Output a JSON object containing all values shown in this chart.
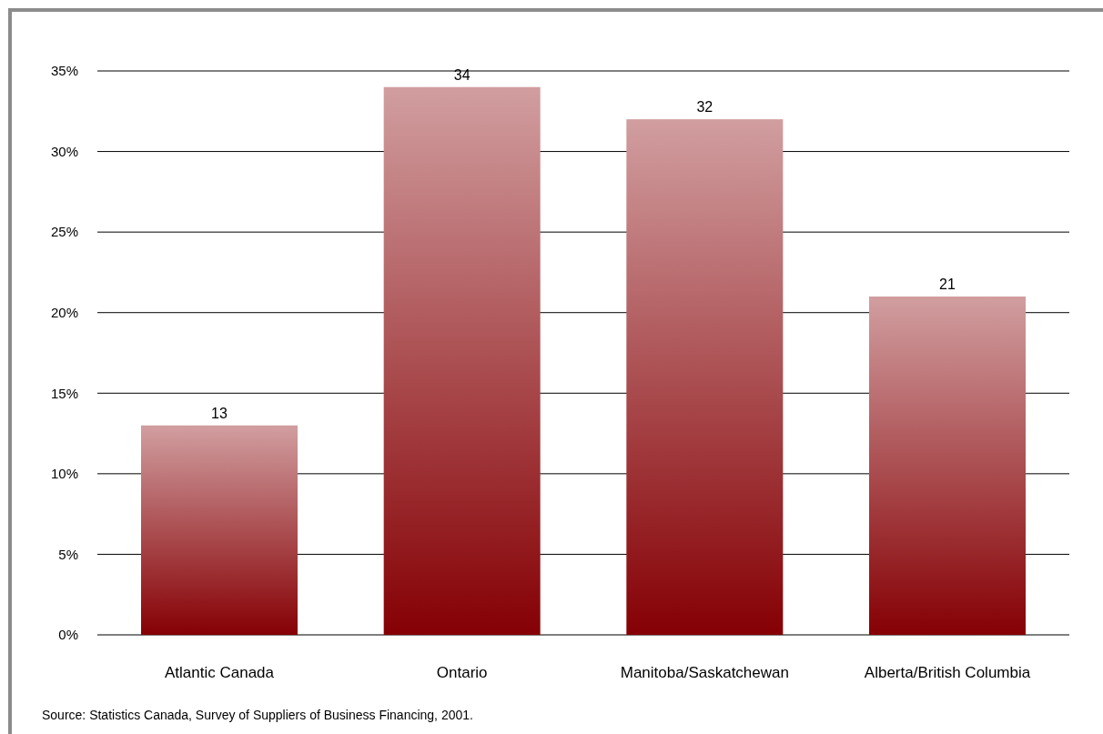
{
  "chart_data": {
    "type": "bar",
    "categories": [
      "Atlantic Canada",
      "Ontario",
      "Manitoba/Saskatchewan",
      "Alberta/British Columbia"
    ],
    "values": [
      13,
      34,
      32,
      21
    ],
    "color": "#850004",
    "ylim": [
      0,
      35
    ],
    "yticks": [
      {
        "value": 0,
        "label": "0%"
      },
      {
        "value": 5,
        "label": "5%"
      },
      {
        "value": 10,
        "label": "10%"
      },
      {
        "value": 15,
        "label": "15%"
      },
      {
        "value": 20,
        "label": "20%"
      },
      {
        "value": 25,
        "label": "25%"
      },
      {
        "value": 30,
        "label": "30%"
      },
      {
        "value": 35,
        "label": "35%"
      }
    ],
    "grid": "y",
    "data_labels": true,
    "annotations": [
      "Source: Statistics Canada, Survey of Suppliers of Business Financing, 2001."
    ]
  }
}
